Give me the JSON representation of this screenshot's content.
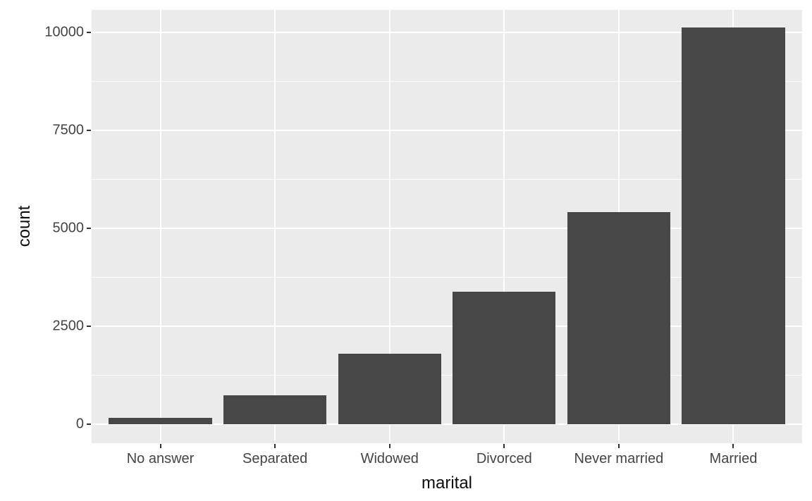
{
  "chart_data": {
    "type": "bar",
    "title": "",
    "xlabel": "marital",
    "ylabel": "count",
    "categories": [
      "No answer",
      "Separated",
      "Widowed",
      "Divorced",
      "Never married",
      "Married"
    ],
    "values": [
      155,
      743,
      1807,
      3383,
      5416,
      10117
    ],
    "y_ticks": [
      0,
      2500,
      5000,
      7500,
      10000
    ],
    "y_tick_labels": [
      "0",
      "2500",
      "5000",
      "7500",
      "10000"
    ],
    "y_minor_gridlines": [
      1250,
      3750,
      6250,
      8750
    ],
    "ylim": [
      0,
      10117
    ],
    "axis_expansion": "5% beyond data range (ggplot default)",
    "grid": "white major and minor horizontal gridlines, white vertical gridline at each category center, on grey panel",
    "legend": "none",
    "theme": "ggplot2 grey",
    "colors": {
      "bar": "#474747",
      "panel_bg": "#EBEBEB",
      "gridline": "#FFFFFF",
      "figure_bg": "#FFFFFF",
      "tick_label_text": "#444444",
      "axis_title_text": "#0d0d0d",
      "tick_mark": "#333333"
    }
  }
}
